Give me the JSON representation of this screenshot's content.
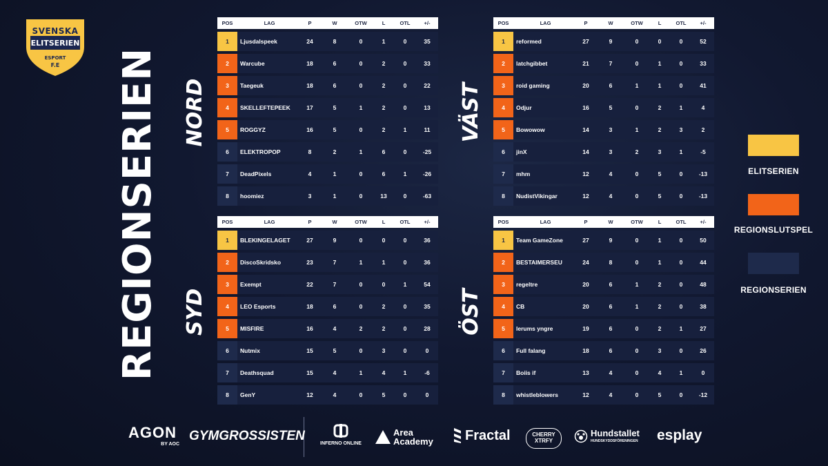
{
  "brand": {
    "logo_line1": "SVENSKA",
    "logo_line2": "ELITSERIEN",
    "logo_line3": "ESPORT",
    "logo_line4": "F.E",
    "title": "REGIONSERIEN"
  },
  "columns": {
    "pos": "POS",
    "lag": "LAG",
    "p": "P",
    "w": "W",
    "otw": "OTW",
    "l": "L",
    "otl": "OTL",
    "pm": "+/-"
  },
  "colors": {
    "elit": "#f8c544",
    "slutspel": "#f26419",
    "serien": "#1e2a4b"
  },
  "groups": {
    "nord": {
      "name": "NORD",
      "rows": [
        {
          "pos": "1",
          "team": "Ljusdalspeek",
          "p": "24",
          "w": "8",
          "otw": "0",
          "l": "1",
          "otl": "0",
          "pm": "35",
          "tier": "gold"
        },
        {
          "pos": "2",
          "team": "Warcube",
          "p": "18",
          "w": "6",
          "otw": "0",
          "l": "2",
          "otl": "0",
          "pm": "33",
          "tier": "orange"
        },
        {
          "pos": "3",
          "team": "Taegeuk",
          "p": "18",
          "w": "6",
          "otw": "0",
          "l": "2",
          "otl": "0",
          "pm": "22",
          "tier": "orange"
        },
        {
          "pos": "4",
          "team": "SKELLEFTEPEEK",
          "p": "17",
          "w": "5",
          "otw": "1",
          "l": "2",
          "otl": "0",
          "pm": "13",
          "tier": "orange"
        },
        {
          "pos": "5",
          "team": "ROGGYZ",
          "p": "16",
          "w": "5",
          "otw": "0",
          "l": "2",
          "otl": "1",
          "pm": "11",
          "tier": "orange"
        },
        {
          "pos": "6",
          "team": "ELEKTROPOP",
          "p": "8",
          "w": "2",
          "otw": "1",
          "l": "6",
          "otl": "0",
          "pm": "-25",
          "tier": "dark"
        },
        {
          "pos": "7",
          "team": "DeadPixels",
          "p": "4",
          "w": "1",
          "otw": "0",
          "l": "6",
          "otl": "1",
          "pm": "-26",
          "tier": "dark"
        },
        {
          "pos": "8",
          "team": "hoomiez",
          "p": "3",
          "w": "1",
          "otw": "0",
          "l": "13",
          "otl": "0",
          "pm": "-63",
          "tier": "dark"
        }
      ]
    },
    "vast": {
      "name": "VÄST",
      "rows": [
        {
          "pos": "1",
          "team": "reformed",
          "p": "27",
          "w": "9",
          "otw": "0",
          "l": "0",
          "otl": "0",
          "pm": "52",
          "tier": "gold"
        },
        {
          "pos": "2",
          "team": "latchgibbet",
          "p": "21",
          "w": "7",
          "otw": "0",
          "l": "1",
          "otl": "0",
          "pm": "33",
          "tier": "orange"
        },
        {
          "pos": "3",
          "team": "roid gaming",
          "p": "20",
          "w": "6",
          "otw": "1",
          "l": "1",
          "otl": "0",
          "pm": "41",
          "tier": "orange"
        },
        {
          "pos": "4",
          "team": "Odjur",
          "p": "16",
          "w": "5",
          "otw": "0",
          "l": "2",
          "otl": "1",
          "pm": "4",
          "tier": "orange"
        },
        {
          "pos": "5",
          "team": "Bowowow",
          "p": "14",
          "w": "3",
          "otw": "1",
          "l": "2",
          "otl": "3",
          "pm": "2",
          "tier": "orange"
        },
        {
          "pos": "6",
          "team": "jinX",
          "p": "14",
          "w": "3",
          "otw": "2",
          "l": "3",
          "otl": "1",
          "pm": "-5",
          "tier": "dark"
        },
        {
          "pos": "7",
          "team": "mhm",
          "p": "12",
          "w": "4",
          "otw": "0",
          "l": "5",
          "otl": "0",
          "pm": "-13",
          "tier": "dark"
        },
        {
          "pos": "8",
          "team": "NudistVikingar",
          "p": "12",
          "w": "4",
          "otw": "0",
          "l": "5",
          "otl": "0",
          "pm": "-13",
          "tier": "dark"
        }
      ]
    },
    "syd": {
      "name": "SYD",
      "rows": [
        {
          "pos": "1",
          "team": "BLEKINGELAGET",
          "p": "27",
          "w": "9",
          "otw": "0",
          "l": "0",
          "otl": "0",
          "pm": "36",
          "tier": "gold"
        },
        {
          "pos": "2",
          "team": "DiscoSkridsko",
          "p": "23",
          "w": "7",
          "otw": "1",
          "l": "1",
          "otl": "0",
          "pm": "36",
          "tier": "orange"
        },
        {
          "pos": "3",
          "team": "Exempt",
          "p": "22",
          "w": "7",
          "otw": "0",
          "l": "0",
          "otl": "1",
          "pm": "54",
          "tier": "orange"
        },
        {
          "pos": "4",
          "team": "LEO Esports",
          "p": "18",
          "w": "6",
          "otw": "0",
          "l": "2",
          "otl": "0",
          "pm": "35",
          "tier": "orange"
        },
        {
          "pos": "5",
          "team": "MISFIRE",
          "p": "16",
          "w": "4",
          "otw": "2",
          "l": "2",
          "otl": "0",
          "pm": "28",
          "tier": "orange"
        },
        {
          "pos": "6",
          "team": "Nutmix",
          "p": "15",
          "w": "5",
          "otw": "0",
          "l": "3",
          "otl": "0",
          "pm": "0",
          "tier": "dark"
        },
        {
          "pos": "7",
          "team": "Deathsquad",
          "p": "15",
          "w": "4",
          "otw": "1",
          "l": "4",
          "otl": "1",
          "pm": "-6",
          "tier": "dark"
        },
        {
          "pos": "8",
          "team": "GenY",
          "p": "12",
          "w": "4",
          "otw": "0",
          "l": "5",
          "otl": "0",
          "pm": "0",
          "tier": "dark"
        }
      ]
    },
    "ost": {
      "name": "ÖST",
      "rows": [
        {
          "pos": "1",
          "team": "Team GameZone",
          "p": "27",
          "w": "9",
          "otw": "0",
          "l": "1",
          "otl": "0",
          "pm": "50",
          "tier": "gold"
        },
        {
          "pos": "2",
          "team": "BESTAIMERSEU",
          "p": "24",
          "w": "8",
          "otw": "0",
          "l": "1",
          "otl": "0",
          "pm": "44",
          "tier": "orange"
        },
        {
          "pos": "3",
          "team": "regeltre",
          "p": "20",
          "w": "6",
          "otw": "1",
          "l": "2",
          "otl": "0",
          "pm": "48",
          "tier": "orange"
        },
        {
          "pos": "4",
          "team": "CB",
          "p": "20",
          "w": "6",
          "otw": "1",
          "l": "2",
          "otl": "0",
          "pm": "38",
          "tier": "orange"
        },
        {
          "pos": "5",
          "team": "lerums yngre",
          "p": "19",
          "w": "6",
          "otw": "0",
          "l": "2",
          "otl": "1",
          "pm": "27",
          "tier": "orange"
        },
        {
          "pos": "6",
          "team": "Full falang",
          "p": "18",
          "w": "6",
          "otw": "0",
          "l": "3",
          "otl": "0",
          "pm": "26",
          "tier": "dark"
        },
        {
          "pos": "7",
          "team": "Boiis if",
          "p": "13",
          "w": "4",
          "otw": "0",
          "l": "4",
          "otl": "1",
          "pm": "0",
          "tier": "dark"
        },
        {
          "pos": "8",
          "team": "whistleblowers",
          "p": "12",
          "w": "4",
          "otw": "0",
          "l": "5",
          "otl": "0",
          "pm": "-12",
          "tier": "dark"
        }
      ]
    }
  },
  "legend": [
    {
      "label": "ELITSERIEN",
      "color": "#f8c544"
    },
    {
      "label": "REGIONSLUTSPEL",
      "color": "#f26419"
    },
    {
      "label": "REGIONSERIEN",
      "color": "#1e2a4b"
    }
  ],
  "sponsors": {
    "agon": "AGON",
    "agon_sub": "BY AOC",
    "gymgrossisten": "GYMGROSSISTEN",
    "inferno": "INFERNO ONLINE",
    "area_line1": "Area",
    "area_line2": "Academy",
    "fractal": "Fractal",
    "cherry_line1": "CHERRY",
    "cherry_line2": "XTRFY",
    "hundstallet": "Hundstallet",
    "hundstallet_sub": "HUNDSKYDDSFÖRENINGEN",
    "esplay": "esplay"
  }
}
